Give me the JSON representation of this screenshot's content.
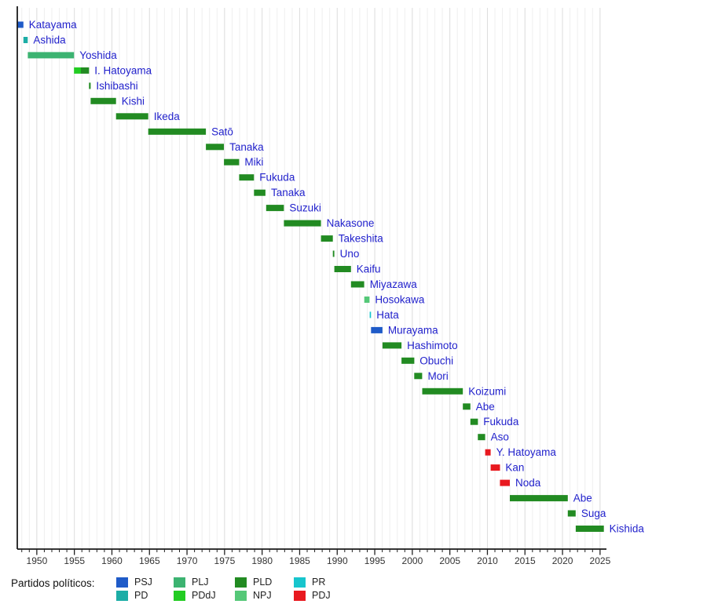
{
  "chart_data": {
    "type": "timeline-gantt",
    "description": "Timeline of Japanese prime ministers colored by political party",
    "x_axis": {
      "unit": "year",
      "min": 1947.4,
      "max": 2025.85,
      "major_ticks": [
        1950,
        1955,
        1960,
        1965,
        1970,
        1975,
        1980,
        1985,
        1990,
        1995,
        2000,
        2005,
        2010,
        2015,
        2020,
        2025
      ],
      "minor_tick_step": 1,
      "grid": true
    },
    "label_color": "#2222cc",
    "rows": [
      {
        "name": "Katayama",
        "segments": [
          {
            "party": "PSJ",
            "start": 1947.42,
            "end": 1948.22
          }
        ]
      },
      {
        "name": "Ashida",
        "segments": [
          {
            "party": "PD",
            "start": 1948.22,
            "end": 1948.8
          }
        ]
      },
      {
        "name": "Yoshida",
        "segments": [
          {
            "party": "PLJ",
            "start": 1948.8,
            "end": 1954.95
          }
        ]
      },
      {
        "name": "I. Hatoyama",
        "segments": [
          {
            "party": "PDdJ",
            "start": 1954.95,
            "end": 1955.87
          },
          {
            "party": "PLD",
            "start": 1955.87,
            "end": 1956.95
          }
        ]
      },
      {
        "name": "Ishibashi",
        "segments": [
          {
            "party": "PLD",
            "start": 1956.95,
            "end": 1957.17
          }
        ]
      },
      {
        "name": "Kishi",
        "segments": [
          {
            "party": "PLD",
            "start": 1957.17,
            "end": 1960.55
          }
        ]
      },
      {
        "name": "Ikeda",
        "segments": [
          {
            "party": "PLD",
            "start": 1960.55,
            "end": 1964.84
          }
        ]
      },
      {
        "name": "Satō",
        "segments": [
          {
            "party": "PLD",
            "start": 1964.84,
            "end": 1972.52
          }
        ]
      },
      {
        "name": "Tanaka",
        "segments": [
          {
            "party": "PLD",
            "start": 1972.52,
            "end": 1974.92
          }
        ]
      },
      {
        "name": "Miki",
        "segments": [
          {
            "party": "PLD",
            "start": 1974.92,
            "end": 1976.94
          }
        ]
      },
      {
        "name": "Fukuda",
        "segments": [
          {
            "party": "PLD",
            "start": 1976.94,
            "end": 1978.92
          }
        ]
      },
      {
        "name": "Tanaka",
        "segments": [
          {
            "party": "PLD",
            "start": 1978.92,
            "end": 1980.45
          }
        ]
      },
      {
        "name": "Suzuki",
        "segments": [
          {
            "party": "PLD",
            "start": 1980.54,
            "end": 1982.9
          }
        ]
      },
      {
        "name": "Nakasone",
        "segments": [
          {
            "party": "PLD",
            "start": 1982.9,
            "end": 1987.84
          }
        ]
      },
      {
        "name": "Takeshita",
        "segments": [
          {
            "party": "PLD",
            "start": 1987.84,
            "end": 1989.42
          }
        ]
      },
      {
        "name": "Uno",
        "segments": [
          {
            "party": "PLD",
            "start": 1989.42,
            "end": 1989.62
          }
        ]
      },
      {
        "name": "Kaifu",
        "segments": [
          {
            "party": "PLD",
            "start": 1989.62,
            "end": 1991.84
          }
        ]
      },
      {
        "name": "Miyazawa",
        "segments": [
          {
            "party": "PLD",
            "start": 1991.84,
            "end": 1993.6
          }
        ]
      },
      {
        "name": "Hosokawa",
        "segments": [
          {
            "party": "NPJ",
            "start": 1993.6,
            "end": 1994.3
          }
        ]
      },
      {
        "name": "Hata",
        "segments": [
          {
            "party": "PR",
            "start": 1994.32,
            "end": 1994.5
          }
        ]
      },
      {
        "name": "Murayama",
        "segments": [
          {
            "party": "PSJ",
            "start": 1994.5,
            "end": 1996.03
          }
        ]
      },
      {
        "name": "Hashimoto",
        "segments": [
          {
            "party": "PLD",
            "start": 1996.03,
            "end": 1998.56
          }
        ]
      },
      {
        "name": "Obuchi",
        "segments": [
          {
            "party": "PLD",
            "start": 1998.56,
            "end": 2000.26
          }
        ]
      },
      {
        "name": "Mori",
        "segments": [
          {
            "party": "PLD",
            "start": 2000.26,
            "end": 2001.32
          }
        ]
      },
      {
        "name": "Koizumi",
        "segments": [
          {
            "party": "PLD",
            "start": 2001.32,
            "end": 2006.73
          }
        ]
      },
      {
        "name": "Abe",
        "segments": [
          {
            "party": "PLD",
            "start": 2006.73,
            "end": 2007.73
          }
        ]
      },
      {
        "name": "Fukuda",
        "segments": [
          {
            "party": "PLD",
            "start": 2007.73,
            "end": 2008.73
          }
        ]
      },
      {
        "name": "Aso",
        "segments": [
          {
            "party": "PLD",
            "start": 2008.73,
            "end": 2009.7
          }
        ]
      },
      {
        "name": "Y. Hatoyama",
        "segments": [
          {
            "party": "PDJ",
            "start": 2009.7,
            "end": 2010.43
          }
        ]
      },
      {
        "name": "Kan",
        "segments": [
          {
            "party": "PDJ",
            "start": 2010.43,
            "end": 2011.67
          }
        ]
      },
      {
        "name": "Noda",
        "segments": [
          {
            "party": "PDJ",
            "start": 2011.67,
            "end": 2012.99
          }
        ]
      },
      {
        "name": "Abe",
        "segments": [
          {
            "party": "PLD",
            "start": 2012.99,
            "end": 2020.71
          }
        ]
      },
      {
        "name": "Suga",
        "segments": [
          {
            "party": "PLD",
            "start": 2020.71,
            "end": 2021.76
          }
        ]
      },
      {
        "name": "Kishida",
        "segments": [
          {
            "party": "PLD",
            "start": 2021.76,
            "end": 2025.5
          }
        ]
      }
    ],
    "party_colors": {
      "PSJ": "#1f5bc8",
      "PD": "#1cada6",
      "PLJ": "#3cb371",
      "PDdJ": "#22cc22",
      "PLD": "#228b22",
      "NPJ": "#55c878",
      "PR": "#17c5cd",
      "PDJ": "#e8191f"
    }
  },
  "legend": {
    "title": "Partidos políticos:",
    "items": [
      {
        "code": "PSJ",
        "color": "#1f5bc8"
      },
      {
        "code": "PD",
        "color": "#1cada6"
      },
      {
        "code": "PLJ",
        "color": "#3cb371"
      },
      {
        "code": "PDdJ",
        "color": "#22cc22"
      },
      {
        "code": "PLD",
        "color": "#228b22"
      },
      {
        "code": "NPJ",
        "color": "#55c878"
      },
      {
        "code": "PR",
        "color": "#17c5cd"
      },
      {
        "code": "PDJ",
        "color": "#e8191f"
      }
    ]
  }
}
